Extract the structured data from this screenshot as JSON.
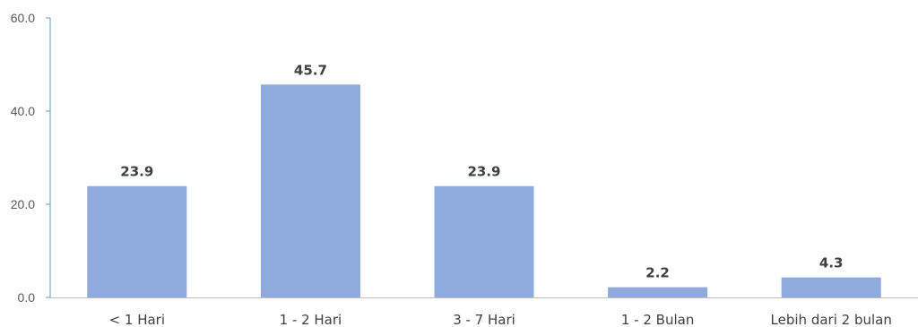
{
  "chart_data": {
    "type": "bar",
    "categories": [
      "< 1 Hari",
      "1 - 2 Hari",
      "3 - 7 Hari",
      "1 - 2 Bulan",
      "Lebih dari 2 bulan"
    ],
    "values": [
      23.9,
      45.7,
      23.9,
      2.2,
      4.3
    ],
    "value_labels": [
      "23.9",
      "45.7",
      "23.9",
      "2.2",
      "4.3"
    ],
    "title": "",
    "xlabel": "",
    "ylabel": "",
    "ylim": [
      0,
      60
    ],
    "yticks": [
      "0.0",
      "20.0",
      "40.0",
      "60.0"
    ],
    "grid": false,
    "legend": "none",
    "colors": {
      "bar": "#8faadc",
      "axis": "#5b9bd5",
      "baseline": "#bfbfbf"
    }
  }
}
